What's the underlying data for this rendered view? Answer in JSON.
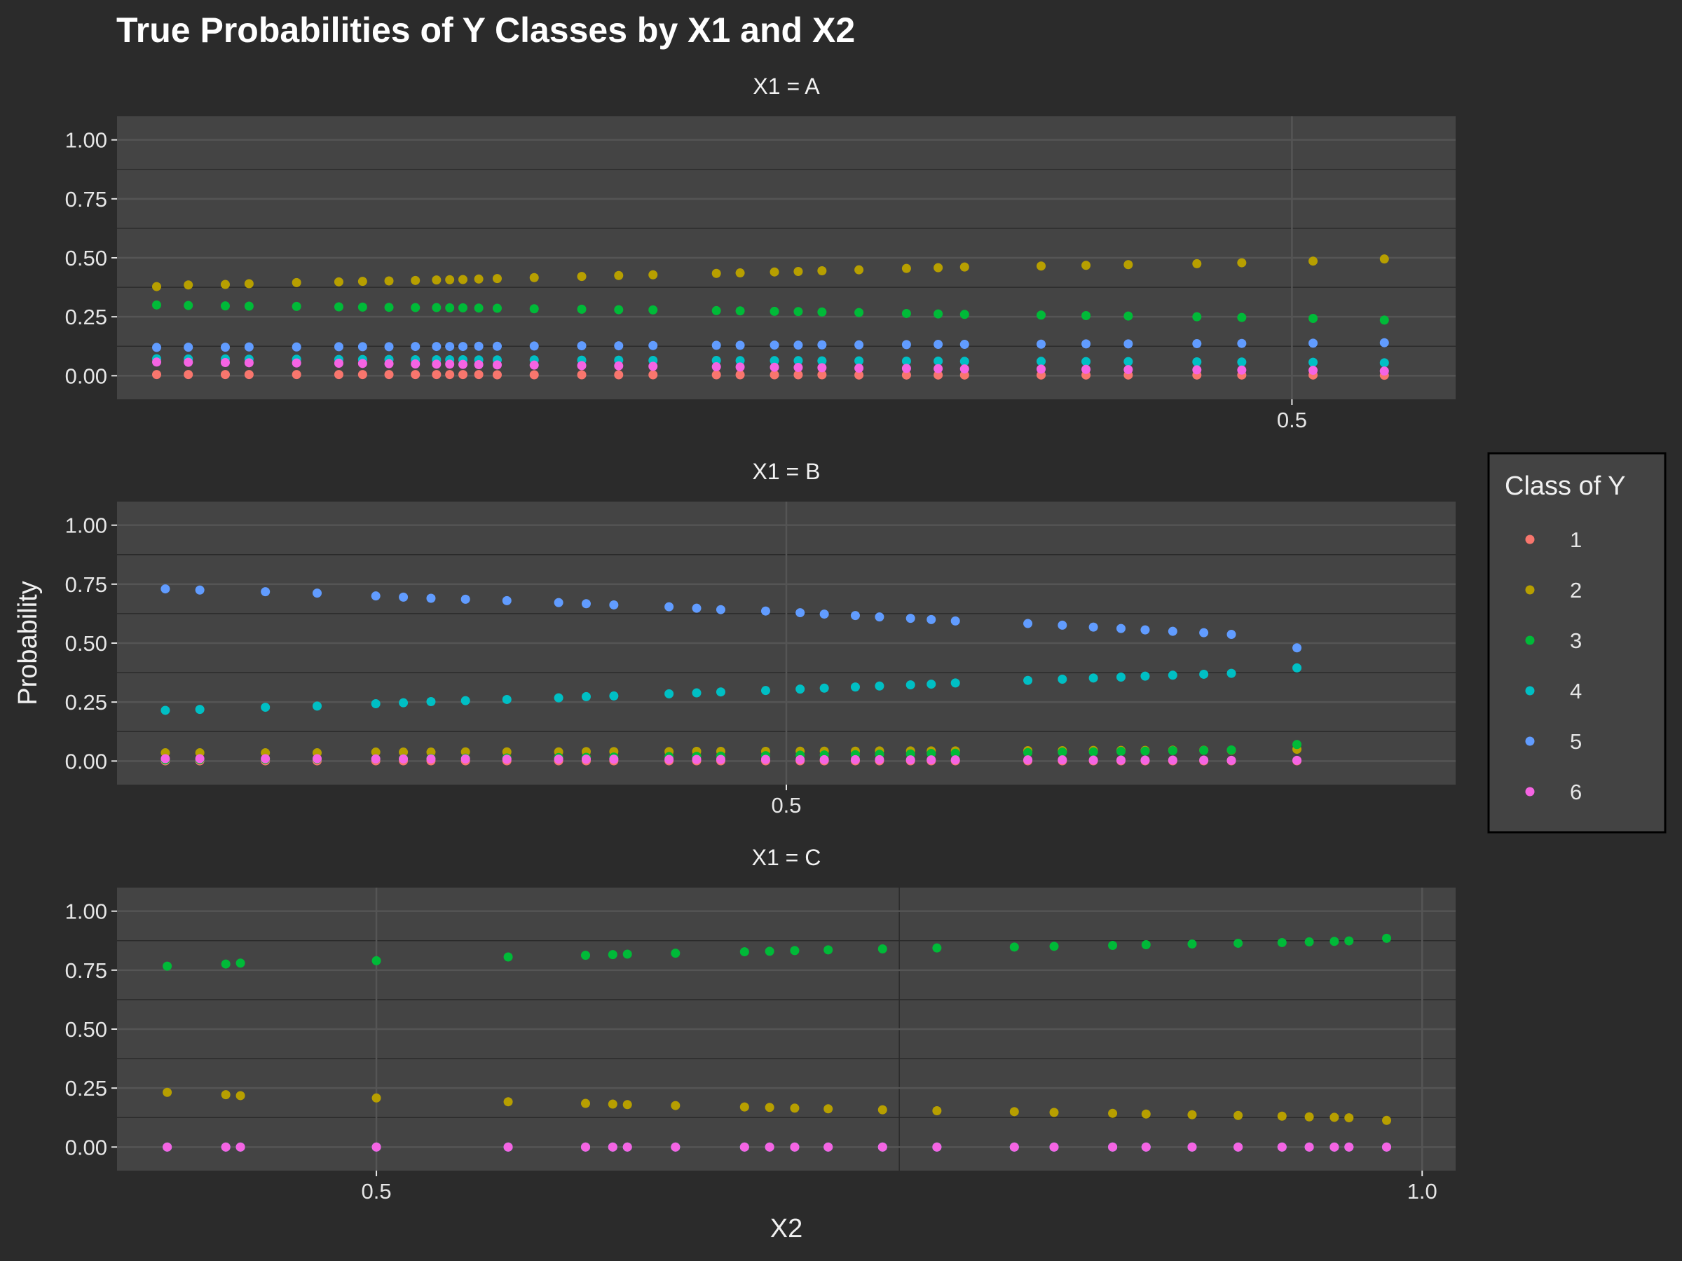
{
  "chart_data": {
    "type": "scatter",
    "title": "True Probabilities of Y Classes by X1 and X2",
    "xlabel": "X2",
    "ylabel": "Probability",
    "ylim": [
      -0.1,
      1.1
    ],
    "yticks": [
      0,
      0.25,
      0.5,
      0.75,
      1
    ],
    "ytick_labels": [
      "0.00",
      "0.25",
      "0.50",
      "0.75",
      "1.00"
    ],
    "grid": true,
    "legend": {
      "title": "Class of Y",
      "position": "right",
      "entries": [
        {
          "label": "1",
          "color": "#F8766D"
        },
        {
          "label": "2",
          "color": "#B79F00"
        },
        {
          "label": "3",
          "color": "#00BA38"
        },
        {
          "label": "4",
          "color": "#00BFC4"
        },
        {
          "label": "5",
          "color": "#619CFF"
        },
        {
          "label": "6",
          "color": "#F564E3"
        }
      ]
    },
    "facets": [
      {
        "strip": "X1 = A",
        "xlim": [
          0.055,
          0.562
        ],
        "xticks": [
          {
            "value": 0.5,
            "label": "0.5"
          }
        ],
        "x": [
          0.07,
          0.082,
          0.096,
          0.105,
          0.123,
          0.139,
          0.148,
          0.158,
          0.168,
          0.176,
          0.181,
          0.186,
          0.192,
          0.199,
          0.213,
          0.231,
          0.245,
          0.258,
          0.282,
          0.291,
          0.304,
          0.313,
          0.322,
          0.336,
          0.354,
          0.366,
          0.376,
          0.405,
          0.422,
          0.438,
          0.464,
          0.481,
          0.508,
          0.535
        ],
        "series": [
          {
            "name": "1",
            "values": [
              0.005,
              0.005,
              0.005,
              0.005,
              0.005,
              0.005,
              0.005,
              0.005,
              0.005,
              0.005,
              0.005,
              0.005,
              0.005,
              0.004,
              0.004,
              0.004,
              0.004,
              0.004,
              0.004,
              0.004,
              0.004,
              0.004,
              0.004,
              0.003,
              0.003,
              0.003,
              0.003,
              0.003,
              0.003,
              0.003,
              0.003,
              0.003,
              0.003,
              0.002
            ]
          },
          {
            "name": "2",
            "values": [
              0.378,
              0.385,
              0.387,
              0.39,
              0.395,
              0.398,
              0.4,
              0.402,
              0.404,
              0.406,
              0.407,
              0.408,
              0.41,
              0.412,
              0.416,
              0.421,
              0.425,
              0.428,
              0.434,
              0.436,
              0.44,
              0.442,
              0.445,
              0.449,
              0.455,
              0.458,
              0.461,
              0.465,
              0.468,
              0.471,
              0.475,
              0.479,
              0.486,
              0.495
            ]
          },
          {
            "name": "3",
            "values": [
              0.3,
              0.298,
              0.296,
              0.295,
              0.294,
              0.292,
              0.291,
              0.29,
              0.289,
              0.289,
              0.288,
              0.288,
              0.287,
              0.286,
              0.284,
              0.282,
              0.28,
              0.279,
              0.276,
              0.275,
              0.273,
              0.272,
              0.27,
              0.268,
              0.264,
              0.262,
              0.26,
              0.257,
              0.255,
              0.253,
              0.25,
              0.247,
              0.243,
              0.236
            ]
          },
          {
            "name": "4",
            "values": [
              0.072,
              0.071,
              0.071,
              0.07,
              0.07,
              0.069,
              0.069,
              0.069,
              0.068,
              0.068,
              0.068,
              0.068,
              0.067,
              0.067,
              0.067,
              0.066,
              0.066,
              0.065,
              0.065,
              0.064,
              0.064,
              0.064,
              0.063,
              0.063,
              0.062,
              0.062,
              0.061,
              0.061,
              0.06,
              0.06,
              0.059,
              0.058,
              0.057,
              0.055
            ]
          },
          {
            "name": "5",
            "values": [
              0.12,
              0.121,
              0.121,
              0.122,
              0.122,
              0.123,
              0.123,
              0.123,
              0.124,
              0.124,
              0.124,
              0.124,
              0.125,
              0.125,
              0.126,
              0.127,
              0.127,
              0.128,
              0.129,
              0.129,
              0.13,
              0.13,
              0.131,
              0.131,
              0.132,
              0.133,
              0.133,
              0.134,
              0.135,
              0.135,
              0.136,
              0.137,
              0.138,
              0.14
            ]
          },
          {
            "name": "6",
            "values": [
              0.058,
              0.057,
              0.056,
              0.055,
              0.054,
              0.053,
              0.052,
              0.051,
              0.05,
              0.049,
              0.049,
              0.048,
              0.047,
              0.046,
              0.045,
              0.043,
              0.042,
              0.04,
              0.038,
              0.037,
              0.036,
              0.035,
              0.034,
              0.032,
              0.031,
              0.03,
              0.029,
              0.028,
              0.027,
              0.026,
              0.025,
              0.024,
              0.023,
              0.02
            ]
          }
        ]
      },
      {
        "strip": "X1 = B",
        "xlim": [
          0.306,
          0.694
        ],
        "xticks": [
          {
            "value": 0.5,
            "label": "0.5"
          }
        ],
        "x": [
          0.32,
          0.33,
          0.349,
          0.364,
          0.381,
          0.389,
          0.397,
          0.407,
          0.419,
          0.434,
          0.442,
          0.45,
          0.466,
          0.474,
          0.481,
          0.494,
          0.504,
          0.511,
          0.52,
          0.527,
          0.536,
          0.542,
          0.549,
          0.57,
          0.58,
          0.589,
          0.597,
          0.604,
          0.612,
          0.621,
          0.629,
          0.648
        ],
        "series": [
          {
            "name": "1",
            "values": [
              0.001,
              0.001,
              0.001,
              0.001,
              0.001,
              0.001,
              0.001,
              0.001,
              0.001,
              0.001,
              0.001,
              0.001,
              0.001,
              0.001,
              0.001,
              0.001,
              0.001,
              0.001,
              0.001,
              0.001,
              0.001,
              0.001,
              0.001,
              0.001,
              0.001,
              0.001,
              0.001,
              0.001,
              0.001,
              0.001,
              0.001,
              0.001
            ]
          },
          {
            "name": "2",
            "values": [
              0.035,
              0.035,
              0.035,
              0.035,
              0.038,
              0.038,
              0.038,
              0.039,
              0.039,
              0.039,
              0.04,
              0.04,
              0.04,
              0.041,
              0.041,
              0.041,
              0.042,
              0.042,
              0.042,
              0.043,
              0.043,
              0.043,
              0.043,
              0.044,
              0.044,
              0.045,
              0.045,
              0.045,
              0.046,
              0.046,
              0.046,
              0.05
            ]
          },
          {
            "name": "3",
            "values": [
              0.005,
              0.006,
              0.007,
              0.008,
              0.009,
              0.01,
              0.011,
              0.012,
              0.013,
              0.015,
              0.016,
              0.017,
              0.019,
              0.02,
              0.021,
              0.023,
              0.025,
              0.026,
              0.027,
              0.029,
              0.03,
              0.032,
              0.033,
              0.036,
              0.038,
              0.039,
              0.041,
              0.042,
              0.044,
              0.045,
              0.047,
              0.07
            ]
          },
          {
            "name": "4",
            "values": [
              0.215,
              0.219,
              0.228,
              0.233,
              0.243,
              0.247,
              0.252,
              0.256,
              0.261,
              0.268,
              0.273,
              0.276,
              0.285,
              0.289,
              0.293,
              0.299,
              0.305,
              0.309,
              0.314,
              0.318,
              0.323,
              0.326,
              0.331,
              0.342,
              0.347,
              0.352,
              0.356,
              0.36,
              0.364,
              0.368,
              0.372,
              0.395
            ]
          },
          {
            "name": "5",
            "values": [
              0.73,
              0.725,
              0.718,
              0.712,
              0.7,
              0.695,
              0.69,
              0.686,
              0.68,
              0.672,
              0.667,
              0.662,
              0.654,
              0.648,
              0.642,
              0.636,
              0.629,
              0.623,
              0.617,
              0.611,
              0.605,
              0.6,
              0.594,
              0.583,
              0.576,
              0.568,
              0.562,
              0.556,
              0.55,
              0.544,
              0.537,
              0.48
            ]
          },
          {
            "name": "6",
            "values": [
              0.01,
              0.01,
              0.01,
              0.01,
              0.009,
              0.009,
              0.009,
              0.009,
              0.008,
              0.008,
              0.008,
              0.008,
              0.007,
              0.007,
              0.007,
              0.007,
              0.006,
              0.006,
              0.006,
              0.006,
              0.005,
              0.005,
              0.005,
              0.005,
              0.005,
              0.004,
              0.004,
              0.004,
              0.004,
              0.004,
              0.003,
              0.003
            ]
          }
        ]
      },
      {
        "strip": "X1 = C",
        "xlim": [
          0.376,
          1.016
        ],
        "xticks": [
          {
            "value": 0.5,
            "label": "0.5"
          },
          {
            "value": 1.0,
            "label": "1.0"
          }
        ],
        "x": [
          0.4,
          0.428,
          0.435,
          0.5,
          0.563,
          0.6,
          0.613,
          0.62,
          0.643,
          0.676,
          0.688,
          0.7,
          0.716,
          0.742,
          0.768,
          0.805,
          0.824,
          0.852,
          0.868,
          0.89,
          0.912,
          0.933,
          0.946,
          0.958,
          0.965,
          0.983
        ],
        "series": [
          {
            "name": "1",
            "values": [
              0,
              0,
              0,
              0,
              0,
              0,
              0,
              0,
              0,
              0,
              0,
              0,
              0,
              0,
              0,
              0,
              0,
              0,
              0,
              0,
              0,
              0,
              0,
              0,
              0,
              0
            ]
          },
          {
            "name": "2",
            "values": [
              0.232,
              0.222,
              0.218,
              0.208,
              0.192,
              0.185,
              0.182,
              0.18,
              0.176,
              0.17,
              0.168,
              0.165,
              0.162,
              0.158,
              0.154,
              0.15,
              0.147,
              0.143,
              0.14,
              0.137,
              0.134,
              0.131,
              0.128,
              0.126,
              0.124,
              0.113
            ]
          },
          {
            "name": "3",
            "values": [
              0.767,
              0.776,
              0.78,
              0.79,
              0.806,
              0.813,
              0.816,
              0.818,
              0.822,
              0.828,
              0.83,
              0.833,
              0.836,
              0.84,
              0.844,
              0.848,
              0.851,
              0.855,
              0.858,
              0.861,
              0.864,
              0.867,
              0.87,
              0.872,
              0.874,
              0.885
            ]
          },
          {
            "name": "4",
            "values": [
              0,
              0,
              0,
              0,
              0,
              0,
              0,
              0,
              0,
              0,
              0,
              0,
              0,
              0,
              0,
              0,
              0,
              0,
              0,
              0,
              0,
              0,
              0,
              0,
              0,
              0
            ]
          },
          {
            "name": "5",
            "values": [
              0,
              0,
              0,
              0,
              0,
              0,
              0,
              0,
              0,
              0,
              0,
              0,
              0,
              0,
              0,
              0,
              0,
              0,
              0,
              0,
              0,
              0,
              0,
              0,
              0,
              0
            ]
          },
          {
            "name": "6",
            "values": [
              0,
              0,
              0,
              0,
              0,
              0,
              0,
              0,
              0,
              0,
              0,
              0,
              0,
              0,
              0,
              0,
              0,
              0,
              0,
              0,
              0,
              0,
              0,
              0,
              0,
              0
            ]
          }
        ]
      }
    ]
  }
}
